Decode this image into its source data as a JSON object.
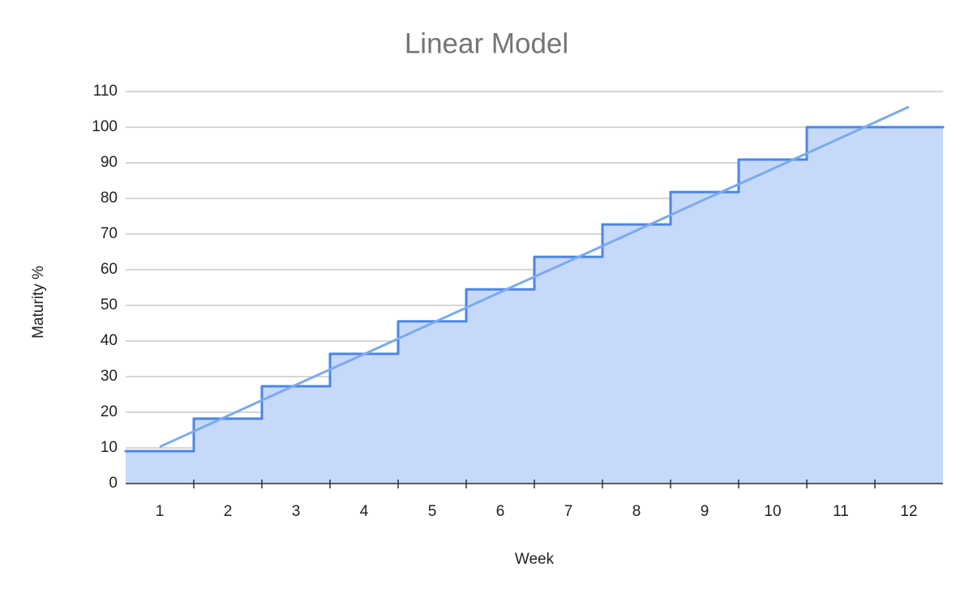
{
  "chart_data": {
    "type": "stepped-area",
    "title": "Linear Model",
    "x_label": "Week",
    "y_label": "Maturity %",
    "categories": [
      "1",
      "2",
      "3",
      "4",
      "5",
      "6",
      "7",
      "8",
      "9",
      "10",
      "11",
      "12"
    ],
    "values": [
      9.1,
      18.2,
      27.3,
      36.4,
      45.5,
      54.5,
      63.6,
      72.7,
      81.8,
      90.9,
      100,
      100
    ],
    "color": "#4a86e8",
    "fill_color": "#c6d9f8",
    "trendline": {
      "color": "#7baaf0",
      "values": [
        10.3,
        19,
        27.7,
        36.3,
        45,
        53.7,
        62.3,
        71,
        79.7,
        88.3,
        97,
        105.7
      ]
    },
    "ylim": [
      0,
      110
    ],
    "yticks": [
      0,
      10,
      20,
      30,
      40,
      50,
      60,
      70,
      80,
      90,
      100,
      110
    ],
    "grid": true
  }
}
